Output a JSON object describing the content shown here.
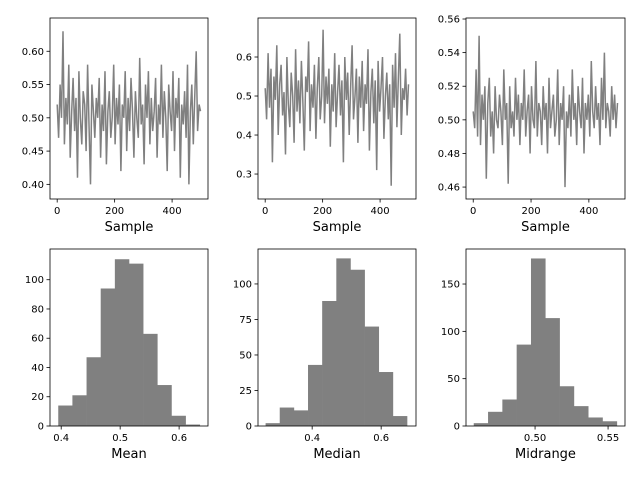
{
  "chart_data": [
    {
      "type": "line",
      "xlabel": "Sample",
      "xlim": [
        -25,
        525
      ],
      "ylim": [
        0.378,
        0.65
      ],
      "xticks": [
        0,
        200,
        400
      ],
      "xtick_labels": [
        "0",
        "200",
        "400"
      ],
      "yticks": [
        0.4,
        0.45,
        0.5,
        0.55,
        0.6
      ],
      "ytick_labels": [
        "0.40",
        "0.45",
        "0.50",
        "0.55",
        "0.60"
      ],
      "color": "#808080",
      "x_range": [
        0,
        499
      ],
      "values": [
        0.52,
        0.47,
        0.55,
        0.5,
        0.63,
        0.46,
        0.53,
        0.49,
        0.58,
        0.44,
        0.51,
        0.56,
        0.48,
        0.53,
        0.41,
        0.57,
        0.5,
        0.46,
        0.54,
        0.52,
        0.45,
        0.58,
        0.49,
        0.4,
        0.55,
        0.51,
        0.47,
        0.53,
        0.5,
        0.56,
        0.44,
        0.52,
        0.48,
        0.57,
        0.43,
        0.51,
        0.54,
        0.47,
        0.5,
        0.58,
        0.46,
        0.53,
        0.49,
        0.55,
        0.42,
        0.52,
        0.5,
        0.57,
        0.45,
        0.53,
        0.48,
        0.56,
        0.51,
        0.44,
        0.54,
        0.5,
        0.47,
        0.59,
        0.49,
        0.52,
        0.43,
        0.55,
        0.5,
        0.57,
        0.46,
        0.53,
        0.48,
        0.51,
        0.56,
        0.44,
        0.52,
        0.49,
        0.58,
        0.47,
        0.54,
        0.5,
        0.42,
        0.55,
        0.51,
        0.48,
        0.57,
        0.45,
        0.53,
        0.5,
        0.56,
        0.41,
        0.52,
        0.49,
        0.54,
        0.47,
        0.58,
        0.4,
        0.51,
        0.55,
        0.46,
        0.53,
        0.6,
        0.48,
        0.52,
        0.51
      ]
    },
    {
      "type": "line",
      "xlabel": "Sample",
      "xlim": [
        -25,
        525
      ],
      "ylim": [
        0.236,
        0.7
      ],
      "xticks": [
        0,
        200,
        400
      ],
      "xtick_labels": [
        "0",
        "200",
        "400"
      ],
      "yticks": [
        0.3,
        0.4,
        0.5,
        0.6
      ],
      "ytick_labels": [
        "0.3",
        "0.4",
        "0.5",
        "0.6"
      ],
      "color": "#808080",
      "x_range": [
        0,
        499
      ],
      "values": [
        0.52,
        0.44,
        0.61,
        0.47,
        0.57,
        0.33,
        0.55,
        0.49,
        0.63,
        0.4,
        0.53,
        0.58,
        0.45,
        0.51,
        0.35,
        0.6,
        0.48,
        0.42,
        0.56,
        0.5,
        0.38,
        0.62,
        0.46,
        0.54,
        0.43,
        0.59,
        0.49,
        0.36,
        0.55,
        0.51,
        0.64,
        0.41,
        0.53,
        0.47,
        0.58,
        0.39,
        0.52,
        0.6,
        0.44,
        0.5,
        0.67,
        0.43,
        0.55,
        0.48,
        0.57,
        0.37,
        0.53,
        0.46,
        0.61,
        0.42,
        0.51,
        0.58,
        0.45,
        0.54,
        0.33,
        0.6,
        0.49,
        0.56,
        0.4,
        0.52,
        0.63,
        0.44,
        0.5,
        0.57,
        0.38,
        0.55,
        0.47,
        0.59,
        0.41,
        0.53,
        0.48,
        0.62,
        0.36,
        0.51,
        0.57,
        0.43,
        0.54,
        0.31,
        0.59,
        0.46,
        0.52,
        0.6,
        0.39,
        0.5,
        0.56,
        0.44,
        0.53,
        0.27,
        0.58,
        0.47,
        0.61,
        0.42,
        0.55,
        0.66,
        0.4,
        0.52,
        0.49,
        0.57,
        0.45,
        0.53
      ]
    },
    {
      "type": "line",
      "xlabel": "Sample",
      "xlim": [
        -25,
        525
      ],
      "ylim": [
        0.4529,
        0.5606
      ],
      "xticks": [
        0,
        200,
        400
      ],
      "xtick_labels": [
        "0",
        "200",
        "400"
      ],
      "yticks": [
        0.46,
        0.48,
        0.5,
        0.52,
        0.54,
        0.56
      ],
      "ytick_labels": [
        "0.46",
        "0.48",
        "0.50",
        "0.52",
        "0.54",
        "0.56"
      ],
      "color": "#808080",
      "x_range": [
        0,
        499
      ],
      "values": [
        0.505,
        0.495,
        0.53,
        0.49,
        0.55,
        0.485,
        0.515,
        0.5,
        0.52,
        0.465,
        0.51,
        0.525,
        0.49,
        0.505,
        0.48,
        0.52,
        0.5,
        0.495,
        0.515,
        0.505,
        0.485,
        0.53,
        0.5,
        0.51,
        0.462,
        0.52,
        0.495,
        0.505,
        0.49,
        0.525,
        0.5,
        0.515,
        0.485,
        0.51,
        0.5,
        0.53,
        0.49,
        0.505,
        0.515,
        0.48,
        0.52,
        0.5,
        0.495,
        0.535,
        0.49,
        0.51,
        0.505,
        0.485,
        0.52,
        0.5,
        0.51,
        0.48,
        0.525,
        0.495,
        0.505,
        0.515,
        0.49,
        0.5,
        0.53,
        0.485,
        0.51,
        0.5,
        0.52,
        0.46,
        0.505,
        0.495,
        0.515,
        0.49,
        0.53,
        0.5,
        0.51,
        0.485,
        0.52,
        0.505,
        0.495,
        0.525,
        0.48,
        0.51,
        0.5,
        0.515,
        0.49,
        0.535,
        0.505,
        0.495,
        0.52,
        0.5,
        0.51,
        0.485,
        0.525,
        0.5,
        0.54,
        0.495,
        0.51,
        0.505,
        0.49,
        0.52,
        0.5,
        0.515,
        0.495,
        0.51
      ]
    },
    {
      "type": "bar",
      "xlabel": "Mean",
      "xlim": [
        0.381,
        0.649
      ],
      "ylim": [
        0,
        121
      ],
      "xticks": [
        0.4,
        0.5,
        0.6
      ],
      "xtick_labels": [
        "0.4",
        "0.5",
        "0.6"
      ],
      "yticks": [
        0,
        20,
        40,
        60,
        80,
        100
      ],
      "ytick_labels": [
        "0",
        "20",
        "40",
        "60",
        "80",
        "100"
      ],
      "color": "#808080",
      "bin_edges": [
        0.395,
        0.419,
        0.443,
        0.467,
        0.491,
        0.515,
        0.539,
        0.563,
        0.587,
        0.611,
        0.635
      ],
      "values": [
        14,
        21,
        47,
        94,
        114,
        111,
        63,
        28,
        7,
        1
      ]
    },
    {
      "type": "bar",
      "xlabel": "Median",
      "xlim": [
        0.243,
        0.701
      ],
      "ylim": [
        0,
        124.6
      ],
      "xticks": [
        0.4,
        0.6
      ],
      "xtick_labels": [
        "0.4",
        "0.6"
      ],
      "yticks": [
        0,
        25,
        50,
        75,
        100
      ],
      "ytick_labels": [
        "0",
        "25",
        "50",
        "75",
        "100"
      ],
      "color": "#808080",
      "bin_edges": [
        0.265,
        0.306,
        0.347,
        0.388,
        0.429,
        0.47,
        0.511,
        0.552,
        0.593,
        0.634,
        0.675
      ],
      "values": [
        2,
        13,
        11,
        43,
        88,
        118,
        110,
        70,
        38,
        7
      ]
    },
    {
      "type": "bar",
      "xlabel": "Midrange",
      "xlim": [
        0.4527,
        0.5616
      ],
      "ylim": [
        0,
        187
      ],
      "xticks": [
        0.5,
        0.55
      ],
      "xtick_labels": [
        "0.50",
        "0.55"
      ],
      "yticks": [
        0,
        50,
        100,
        150
      ],
      "ytick_labels": [
        "0",
        "50",
        "100",
        "150"
      ],
      "color": "#808080",
      "bin_edges": [
        0.458,
        0.4678,
        0.4776,
        0.4874,
        0.4972,
        0.507,
        0.5168,
        0.5266,
        0.5364,
        0.5462,
        0.556
      ],
      "values": [
        3,
        15,
        28,
        86,
        177,
        114,
        42,
        21,
        9,
        5
      ]
    }
  ]
}
